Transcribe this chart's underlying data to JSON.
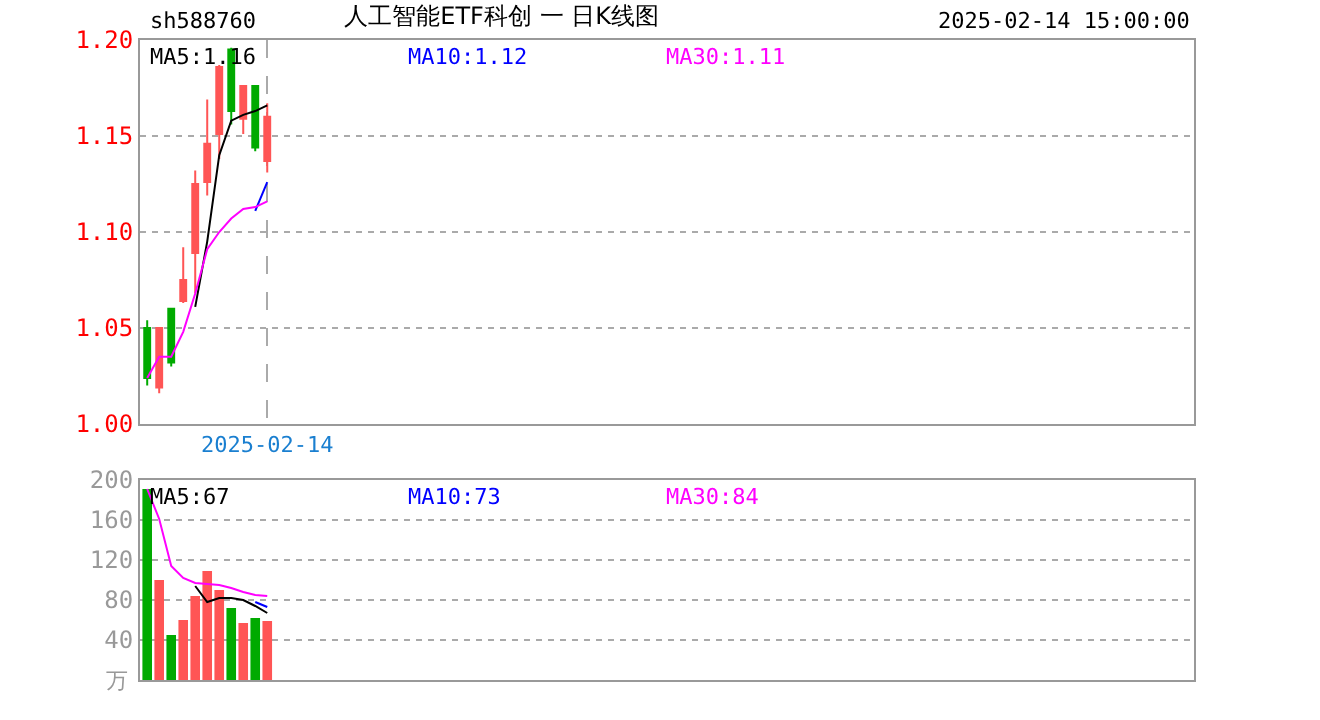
{
  "chart_data": [
    {
      "type": "candlestick",
      "title": "人工智能ETF科创 一 日K线图",
      "annotations": [
        "sh588760",
        "2025-02-14 15:00:00"
      ],
      "categories": [
        null,
        null,
        null,
        null,
        null,
        null,
        null,
        null,
        null,
        null,
        "2025-02-14"
      ],
      "ohlc": [
        [
          1.05,
          1.054,
          1.02,
          1.024
        ],
        [
          1.019,
          1.05,
          1.016,
          1.05
        ],
        [
          1.06,
          1.06,
          1.03,
          1.032
        ],
        [
          1.064,
          1.092,
          1.063,
          1.075
        ],
        [
          1.089,
          1.132,
          1.068,
          1.125
        ],
        [
          1.126,
          1.169,
          1.119,
          1.146
        ],
        [
          1.151,
          1.187,
          1.138,
          1.186
        ],
        [
          1.195,
          1.196,
          1.156,
          1.163
        ],
        [
          1.159,
          1.176,
          1.151,
          1.176
        ],
        [
          1.176,
          1.176,
          1.142,
          1.144
        ],
        [
          1.137,
          1.167,
          1.131,
          1.16
        ]
      ],
      "colors": [
        "#00aa00",
        "#ff5555",
        "#00aa00",
        "#ff5555",
        "#ff5555",
        "#ff5555",
        "#ff5555",
        "#00aa00",
        "#ff5555",
        "#00aa00",
        "#ff5555"
      ],
      "series": [
        {
          "name": "MA5:1.16",
          "type": "line",
          "color": "#000000",
          "values": [
            null,
            null,
            null,
            null,
            1.061,
            1.095,
            1.14,
            1.158,
            1.161,
            1.163,
            1.166
          ]
        },
        {
          "name": "MA10:1.12",
          "type": "line",
          "color": "#0000ff",
          "values": [
            null,
            null,
            null,
            null,
            null,
            null,
            null,
            null,
            null,
            1.111,
            1.126
          ]
        },
        {
          "name": "MA30:1.11",
          "type": "line",
          "color": "#ff00ff",
          "values": [
            1.024,
            1.035,
            1.035,
            1.048,
            1.068,
            1.091,
            1.1,
            1.107,
            1.112,
            1.113,
            1.116
          ]
        }
      ],
      "ylim": [
        1.0,
        1.2
      ],
      "yticks": [
        {
          "value": 1.0,
          "label": "1.00"
        },
        {
          "value": 1.05,
          "label": "1.05"
        },
        {
          "value": 1.1,
          "label": "1.10"
        },
        {
          "value": 1.15,
          "label": "1.15"
        },
        {
          "value": 1.2,
          "label": "1.20"
        }
      ],
      "grid": true,
      "legend": "top"
    },
    {
      "type": "bar",
      "ylabel": "万",
      "categories": [
        null,
        null,
        null,
        null,
        null,
        null,
        null,
        null,
        null,
        null,
        null
      ],
      "values": [
        191,
        100,
        45,
        60,
        84,
        109,
        90,
        72,
        57,
        62,
        59
      ],
      "colors": [
        "#00aa00",
        "#ff5555",
        "#00aa00",
        "#ff5555",
        "#ff5555",
        "#ff5555",
        "#ff5555",
        "#00aa00",
        "#ff5555",
        "#00aa00",
        "#ff5555"
      ],
      "series": [
        {
          "name": "MA5:67",
          "type": "line",
          "color": "#000000",
          "values": [
            null,
            null,
            null,
            null,
            94,
            78,
            82,
            82,
            80,
            74,
            67
          ]
        },
        {
          "name": "MA10:73",
          "type": "line",
          "color": "#0000ff",
          "values": [
            null,
            null,
            null,
            null,
            null,
            null,
            null,
            null,
            null,
            78,
            73
          ]
        },
        {
          "name": "MA30:84",
          "type": "line",
          "color": "#ff00ff",
          "values": [
            191,
            161,
            114,
            102,
            97,
            96,
            95,
            92,
            88,
            85,
            84
          ]
        }
      ],
      "ylim": [
        0,
        200
      ],
      "yticks": [
        40,
        80,
        120,
        160,
        200
      ],
      "grid": "y",
      "legend": "top",
      "tick_labels": "y"
    }
  ]
}
